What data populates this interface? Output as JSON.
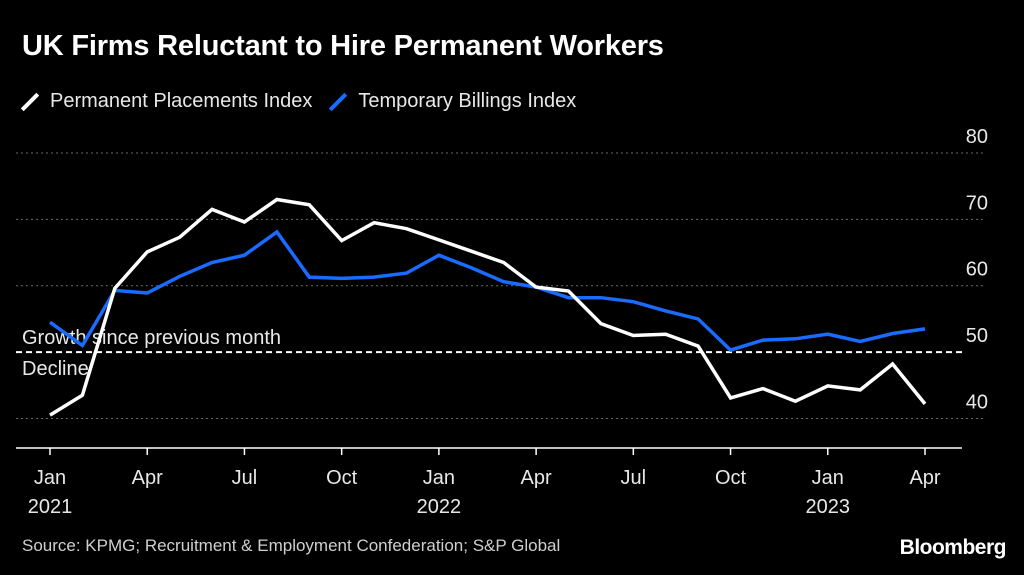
{
  "chart_data": {
    "type": "line",
    "title": "UK Firms Reluctant to Hire Permanent Workers",
    "x": [
      "Jan 2021",
      "Feb 2021",
      "Mar 2021",
      "Apr 2021",
      "May 2021",
      "Jun 2021",
      "Jul 2021",
      "Aug 2021",
      "Sep 2021",
      "Oct 2021",
      "Nov 2021",
      "Dec 2021",
      "Jan 2022",
      "Feb 2022",
      "Mar 2022",
      "Apr 2022",
      "May 2022",
      "Jun 2022",
      "Jul 2022",
      "Aug 2022",
      "Sep 2022",
      "Oct 2022",
      "Nov 2022",
      "Dec 2022",
      "Jan 2023",
      "Feb 2023",
      "Mar 2023",
      "Apr 2023"
    ],
    "series": [
      {
        "name": "Permanent Placements Index",
        "color": "#ffffff",
        "values": [
          40.5,
          43.5,
          59.6,
          65.1,
          67.3,
          71.5,
          69.6,
          73.0,
          72.2,
          66.8,
          69.5,
          68.6,
          66.9,
          65.2,
          63.5,
          59.8,
          59.2,
          54.3,
          52.5,
          52.7,
          50.9,
          43.1,
          44.5,
          42.6,
          44.9,
          44.3,
          48.2,
          42.2
        ]
      },
      {
        "name": "Temporary Billings Index",
        "color": "#1a6bff",
        "values": [
          54.5,
          51.0,
          59.3,
          58.9,
          61.4,
          63.5,
          64.6,
          68.1,
          61.3,
          61.1,
          61.3,
          61.9,
          64.6,
          62.7,
          60.6,
          59.8,
          58.2,
          58.2,
          57.6,
          56.2,
          55.0,
          50.3,
          51.8,
          52.0,
          52.7,
          51.6,
          52.8,
          53.5
        ]
      }
    ],
    "reference_line": {
      "value": 50,
      "label_above": "Growth since previous month",
      "label_below": "Decline"
    },
    "ylim": [
      36,
      80
    ],
    "yticks": [
      40,
      50,
      60,
      70,
      80
    ],
    "ytick_labels": [
      "40",
      "50",
      "60",
      "70",
      "80"
    ],
    "xticks": [
      {
        "index": 0,
        "label": "Jan",
        "year": "2021"
      },
      {
        "index": 3,
        "label": "Apr",
        "year": ""
      },
      {
        "index": 6,
        "label": "Jul",
        "year": ""
      },
      {
        "index": 9,
        "label": "Oct",
        "year": ""
      },
      {
        "index": 12,
        "label": "Jan",
        "year": "2022"
      },
      {
        "index": 15,
        "label": "Apr",
        "year": ""
      },
      {
        "index": 18,
        "label": "Jul",
        "year": ""
      },
      {
        "index": 21,
        "label": "Oct",
        "year": ""
      },
      {
        "index": 24,
        "label": "Jan",
        "year": "2023"
      },
      {
        "index": 27,
        "label": "Apr",
        "year": ""
      }
    ],
    "xlabel": "",
    "ylabel": "",
    "grid": true,
    "legend_position": "top-left"
  },
  "source": "Source: KPMG; Recruitment & Employment Confederation; S&P Global",
  "brand": "Bloomberg"
}
